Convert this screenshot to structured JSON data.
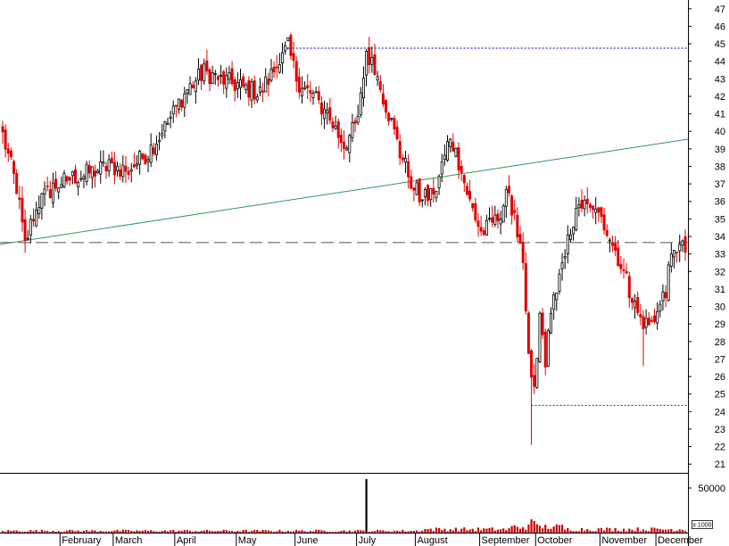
{
  "chart_data": {
    "type": "candlestick",
    "price_axis": {
      "ylim": [
        20.5,
        47.5
      ],
      "ticks": [
        21,
        22,
        23,
        24,
        25,
        26,
        27,
        28,
        29,
        30,
        31,
        32,
        33,
        34,
        35,
        36,
        37,
        38,
        39,
        40,
        41,
        42,
        43,
        44,
        45,
        46,
        47
      ]
    },
    "volume_axis": {
      "ylim": [
        0,
        67000
      ],
      "tick_label": "50000",
      "tick_value": 50000,
      "unit_label": "x 1000"
    },
    "months": [
      "February",
      "March",
      "April",
      "May",
      "June",
      "July",
      "August",
      "September",
      "October",
      "November",
      "December"
    ],
    "trading_days": 245,
    "month_start_index": [
      21,
      40,
      62,
      84,
      105,
      127,
      148,
      171,
      191,
      214,
      234
    ],
    "anchors": [
      [
        0,
        39.8
      ],
      [
        5,
        36.8
      ],
      [
        8,
        33.5
      ],
      [
        12,
        35.8
      ],
      [
        18,
        36.8
      ],
      [
        22,
        37.2
      ],
      [
        30,
        37.6
      ],
      [
        38,
        38.0
      ],
      [
        45,
        37.8
      ],
      [
        52,
        38.8
      ],
      [
        58,
        40.2
      ],
      [
        65,
        42.2
      ],
      [
        72,
        43.4
      ],
      [
        78,
        43.0
      ],
      [
        84,
        42.6
      ],
      [
        92,
        42.2
      ],
      [
        99,
        44.0
      ],
      [
        102,
        44.8
      ],
      [
        106,
        42.5
      ],
      [
        110,
        42.2
      ],
      [
        116,
        41.0
      ],
      [
        122,
        39.2
      ],
      [
        127,
        40.5
      ],
      [
        130,
        44.6
      ],
      [
        134,
        43.0
      ],
      [
        138,
        41.0
      ],
      [
        142,
        38.8
      ],
      [
        147,
        36.8
      ],
      [
        150,
        36.0
      ],
      [
        155,
        36.8
      ],
      [
        160,
        39.8
      ],
      [
        163,
        38.2
      ],
      [
        167,
        36.0
      ],
      [
        171,
        34.2
      ],
      [
        176,
        34.8
      ],
      [
        180,
        36.2
      ],
      [
        183,
        35.5
      ],
      [
        186,
        32.0
      ],
      [
        188,
        27.0
      ],
      [
        190,
        25.0
      ],
      [
        192,
        29.5
      ],
      [
        194,
        27.0
      ],
      [
        197,
        30.5
      ],
      [
        200,
        32.0
      ],
      [
        203,
        34.5
      ],
      [
        207,
        35.8
      ],
      [
        212,
        35.2
      ],
      [
        216,
        34.5
      ],
      [
        220,
        32.8
      ],
      [
        224,
        31.0
      ],
      [
        227,
        29.5
      ],
      [
        231,
        28.8
      ],
      [
        234,
        29.6
      ],
      [
        237,
        31.0
      ],
      [
        240,
        33.5
      ],
      [
        244,
        33.2
      ]
    ],
    "wick_extremes": [
      {
        "index": 102,
        "high": 44.8
      },
      {
        "index": 130,
        "high": 44.7
      },
      {
        "index": 189,
        "low": 22.1
      },
      {
        "index": 229,
        "low": 26.6
      }
    ],
    "volume_spikes": [
      {
        "index": 130,
        "value": 60000
      },
      {
        "index": 189,
        "value": 15000
      },
      {
        "index": 190,
        "value": 13000
      }
    ],
    "reference_lines": [
      {
        "type": "trendline",
        "color": "#2e9b55",
        "style": "solid",
        "from": [
          0,
          33.55
        ],
        "to": [
          244,
          39.55
        ]
      },
      {
        "type": "horizontal",
        "color": "#555555",
        "style": "dashed",
        "value": 33.65,
        "from_index": 0
      },
      {
        "type": "horizontal",
        "color": "#0000cc",
        "style": "dotted",
        "value": 44.75,
        "from_index": 101
      },
      {
        "type": "horizontal",
        "color": "#333333",
        "style": "dotted",
        "value": 24.35,
        "from_index": 189
      }
    ],
    "colors": {
      "down": "#e00000",
      "up_outline": "#000000",
      "up_fill": "#ffffff",
      "volume": "#cc0000",
      "volume_spike": "#000000"
    },
    "grid": false
  }
}
